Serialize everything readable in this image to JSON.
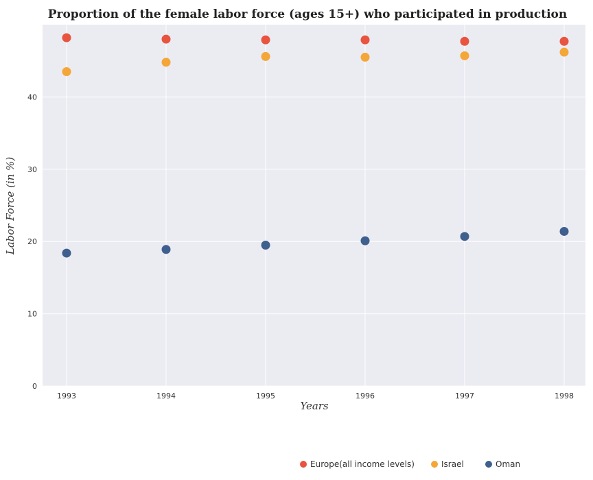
{
  "chart_data": {
    "type": "scatter",
    "title": "Proportion of the female labor force (ages 15+) who participated in production",
    "xlabel": "Years",
    "ylabel": "Labor Force (in %)",
    "categories": [
      "1993",
      "1994",
      "1995",
      "1996",
      "1997",
      "1998"
    ],
    "y_ticks": [
      "0",
      "10",
      "20",
      "30",
      "40"
    ],
    "ylim": [
      0,
      50
    ],
    "grid": true,
    "legend_position": "bottom-right",
    "series": [
      {
        "name": "Europe(all income levels)",
        "color": "#e8543f",
        "values": [
          48.2,
          48.0,
          47.9,
          47.9,
          47.7,
          47.7
        ]
      },
      {
        "name": "Israel",
        "color": "#f4a637",
        "values": [
          43.5,
          44.8,
          45.6,
          45.5,
          45.7,
          46.2
        ]
      },
      {
        "name": "Oman",
        "color": "#3f5f8f",
        "values": [
          18.4,
          18.9,
          19.5,
          20.1,
          20.7,
          21.4
        ]
      }
    ]
  }
}
